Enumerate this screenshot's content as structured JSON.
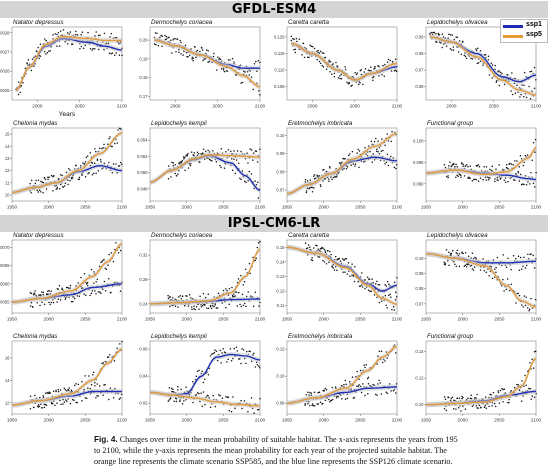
{
  "headers": {
    "top": "GFDL-ESM4",
    "bottom": "IPSL-CM6-LR"
  },
  "legend": [
    {
      "name": "ssp1",
      "color": "#1f2fb5"
    },
    {
      "name": "ssp5",
      "color": "#e39a3a"
    }
  ],
  "colors": {
    "ssp126": "#1f2fb5",
    "ssp585": "#e39a3a",
    "band": "#c9c9c9",
    "points": "#111111",
    "header_bg": "#d4d4d4"
  },
  "caption": {
    "label": "Fig. 4.",
    "lines": [
      "Changes over time in the mean probability of suitable habitat. The x-axis represents the years from 195",
      "to 2100, while the y-axis represents the mean probability for each year of the projected suitable habitat. The",
      "orange line represents the climate scenario SSP585, and the blue line represents the SSP126 climate scenario."
    ]
  },
  "chart_data": [
    {
      "type": "scatter",
      "group": "GFDL-ESM4",
      "title": "Natator depressus",
      "xlabel": "Years",
      "ylabel": "",
      "x_ticks": [
        "2000",
        "2050",
        "2100"
      ],
      "y_ticks": [
        "0.0025",
        "0.0026",
        "0.0027",
        "0.0028"
      ],
      "xlim": [
        1970,
        2100
      ],
      "ylim": [
        0.00245,
        0.00283
      ],
      "series": [
        {
          "name": "SSP126",
          "x": [
            1975,
            1990,
            2010,
            2030,
            2060,
            2080,
            2100
          ],
          "y": [
            0.0025,
            0.00262,
            0.00273,
            0.00277,
            0.00275,
            0.00273,
            0.00271
          ]
        },
        {
          "name": "SSP585",
          "x": [
            1975,
            1990,
            2010,
            2030,
            2060,
            2080,
            2100
          ],
          "y": [
            0.0025,
            0.00262,
            0.00274,
            0.00278,
            0.00277,
            0.00276,
            0.00276
          ]
        }
      ]
    },
    {
      "type": "scatter",
      "group": "GFDL-ESM4",
      "title": "Dermochelys coriacea",
      "xlabel": "",
      "ylabel": "",
      "x_ticks": [
        "2000",
        "2050",
        "2100"
      ],
      "y_ticks": [
        "0.17",
        "0.18",
        "0.19",
        "0.20"
      ],
      "xlim": [
        1970,
        2100
      ],
      "ylim": [
        0.168,
        0.207
      ],
      "series": [
        {
          "name": "SSP126",
          "x": [
            1975,
            2000,
            2030,
            2060,
            2080,
            2100
          ],
          "y": [
            0.2,
            0.197,
            0.192,
            0.187,
            0.185,
            0.185
          ]
        },
        {
          "name": "SSP585",
          "x": [
            1975,
            2000,
            2030,
            2060,
            2080,
            2100
          ],
          "y": [
            0.2,
            0.197,
            0.192,
            0.186,
            0.181,
            0.175
          ]
        }
      ]
    },
    {
      "type": "scatter",
      "group": "GFDL-ESM4",
      "title": "Caretta caretta",
      "xlabel": "",
      "ylabel": "",
      "x_ticks": [
        "2000",
        "2050",
        "2100"
      ],
      "y_ticks": [
        "0.105",
        "0.110",
        "0.115",
        "0.120"
      ],
      "xlim": [
        1970,
        2100
      ],
      "ylim": [
        0.101,
        0.123
      ],
      "series": [
        {
          "name": "SSP126",
          "x": [
            1975,
            2000,
            2030,
            2050,
            2070,
            2100
          ],
          "y": [
            0.118,
            0.115,
            0.11,
            0.107,
            0.109,
            0.111
          ]
        },
        {
          "name": "SSP585",
          "x": [
            1975,
            2000,
            2030,
            2050,
            2070,
            2100
          ],
          "y": [
            0.118,
            0.115,
            0.11,
            0.107,
            0.109,
            0.112
          ]
        }
      ]
    },
    {
      "type": "scatter",
      "group": "GFDL-ESM4",
      "title": "Lepidochelys olivacea",
      "xlabel": "",
      "ylabel": "",
      "x_ticks": [
        "2000",
        "2050",
        "2100"
      ],
      "y_ticks": [
        "0.06",
        "0.07",
        "0.08",
        "0.09"
      ],
      "xlim": [
        1970,
        2100
      ],
      "ylim": [
        0.052,
        0.096
      ],
      "series": [
        {
          "name": "SSP126",
          "x": [
            1975,
            2000,
            2030,
            2060,
            2080,
            2100
          ],
          "y": [
            0.09,
            0.087,
            0.08,
            0.066,
            0.063,
            0.067
          ]
        },
        {
          "name": "SSP585",
          "x": [
            1975,
            2000,
            2030,
            2060,
            2080,
            2100
          ],
          "y": [
            0.09,
            0.087,
            0.078,
            0.064,
            0.058,
            0.055
          ]
        }
      ]
    },
    {
      "type": "scatter",
      "group": "GFDL-ESM4",
      "title": "Chelonia mydas",
      "xlabel": "",
      "ylabel": "",
      "x_ticks": [
        "1950",
        "2000",
        "2050",
        "2100"
      ],
      "y_ticks": [
        "10",
        "11",
        "12",
        "13",
        "14",
        "15"
      ],
      "xlim": [
        1950,
        2100
      ],
      "ylim": [
        9.5,
        15.5
      ],
      "series": [
        {
          "name": "SSP126",
          "x": [
            1950,
            1980,
            2010,
            2040,
            2070,
            2100
          ],
          "y": [
            10.2,
            10.6,
            11.0,
            11.9,
            12.4,
            12.0
          ]
        },
        {
          "name": "SSP585",
          "x": [
            1950,
            1980,
            2010,
            2040,
            2070,
            2100
          ],
          "y": [
            10.2,
            10.6,
            11.0,
            12.0,
            13.4,
            15.1
          ]
        }
      ]
    },
    {
      "type": "scatter",
      "group": "GFDL-ESM4",
      "title": "Lepidochelys kempii",
      "xlabel": "",
      "ylabel": "",
      "x_ticks": [
        "1950",
        "2000",
        "2050",
        "2100"
      ],
      "y_ticks": [
        "0.048",
        "0.050",
        "0.052",
        "0.054"
      ],
      "xlim": [
        1950,
        2100
      ],
      "ylim": [
        0.0465,
        0.0555
      ],
      "series": [
        {
          "name": "SSP126",
          "x": [
            1950,
            1980,
            2010,
            2030,
            2060,
            2080,
            2100
          ],
          "y": [
            0.0488,
            0.0503,
            0.0516,
            0.0521,
            0.0512,
            0.0496,
            0.0478
          ]
        },
        {
          "name": "SSP585",
          "x": [
            1950,
            1980,
            2010,
            2030,
            2060,
            2080,
            2100
          ],
          "y": [
            0.0488,
            0.0503,
            0.0517,
            0.0522,
            0.0521,
            0.052,
            0.0519
          ]
        }
      ]
    },
    {
      "type": "scatter",
      "group": "GFDL-ESM4",
      "title": "Eretmochelys imbricata",
      "xlabel": "",
      "ylabel": "",
      "x_ticks": [
        "1950",
        "2000",
        "2050",
        "2100"
      ],
      "y_ticks": [
        "0.07",
        "0.08",
        "0.09",
        "0.10"
      ],
      "xlim": [
        1950,
        2100
      ],
      "ylim": [
        0.064,
        0.104
      ],
      "series": [
        {
          "name": "SSP126",
          "x": [
            1950,
            1980,
            2010,
            2040,
            2070,
            2100
          ],
          "y": [
            0.068,
            0.073,
            0.079,
            0.086,
            0.088,
            0.086
          ]
        },
        {
          "name": "SSP585",
          "x": [
            1950,
            1980,
            2010,
            2040,
            2070,
            2100
          ],
          "y": [
            0.068,
            0.073,
            0.079,
            0.087,
            0.094,
            0.101
          ]
        }
      ]
    },
    {
      "type": "scatter",
      "group": "GFDL-ESM4",
      "title": "Functional group",
      "xlabel": "",
      "ylabel": "",
      "x_ticks": [
        "1950",
        "2000",
        "2050",
        "2100"
      ],
      "y_ticks": [
        "0.090",
        "0.095",
        "0.100"
      ],
      "xlim": [
        1950,
        2100
      ],
      "ylim": [
        0.086,
        0.103
      ],
      "series": [
        {
          "name": "SSP126",
          "x": [
            1950,
            1990,
            2030,
            2060,
            2090,
            2100
          ],
          "y": [
            0.0925,
            0.0932,
            0.0925,
            0.092,
            0.0912,
            0.091
          ]
        },
        {
          "name": "SSP585",
          "x": [
            1950,
            1990,
            2030,
            2060,
            2090,
            2100
          ],
          "y": [
            0.0925,
            0.0932,
            0.0922,
            0.0928,
            0.096,
            0.0985
          ]
        }
      ]
    },
    {
      "type": "scatter",
      "group": "IPSL-CM6-LR",
      "title": "Natator depressus",
      "xlabel": "",
      "ylabel": "",
      "x_ticks": [
        "1950",
        "2000",
        "2050",
        "2100"
      ],
      "y_ticks": [
        "0.0055",
        "0.0060",
        "0.0065",
        "0.0070"
      ],
      "xlim": [
        1950,
        2100
      ],
      "ylim": [
        0.0052,
        0.0072
      ],
      "series": [
        {
          "name": "SSP126",
          "x": [
            1950,
            1990,
            2030,
            2060,
            2100
          ],
          "y": [
            0.0055,
            0.0056,
            0.0057,
            0.0059,
            0.006
          ]
        },
        {
          "name": "SSP585",
          "x": [
            1950,
            1990,
            2030,
            2060,
            2080,
            2100
          ],
          "y": [
            0.0055,
            0.0056,
            0.0058,
            0.0062,
            0.0066,
            0.0071
          ]
        }
      ]
    },
    {
      "type": "scatter",
      "group": "IPSL-CM6-LR",
      "title": "Dermochelys coriacea",
      "xlabel": "",
      "ylabel": "",
      "x_ticks": [
        "1950",
        "2000",
        "2050",
        "2100"
      ],
      "y_ticks": [
        "0.24",
        "0.28",
        "0.32"
      ],
      "xlim": [
        1950,
        2100
      ],
      "ylim": [
        0.225,
        0.345
      ],
      "series": [
        {
          "name": "SSP126",
          "x": [
            1950,
            1990,
            2030,
            2060,
            2100
          ],
          "y": [
            0.24,
            0.242,
            0.244,
            0.247,
            0.248
          ]
        },
        {
          "name": "SSP585",
          "x": [
            1950,
            1990,
            2030,
            2060,
            2080,
            2100
          ],
          "y": [
            0.24,
            0.242,
            0.245,
            0.258,
            0.285,
            0.33
          ]
        }
      ]
    },
    {
      "type": "scatter",
      "group": "IPSL-CM6-LR",
      "title": "Caretta caretta",
      "xlabel": "",
      "ylabel": "",
      "x_ticks": [
        "1950",
        "2000",
        "2050",
        "2100"
      ],
      "y_ticks": [
        "0.11",
        "0.12",
        "0.13",
        "0.14",
        "0.15"
      ],
      "xlim": [
        1950,
        2100
      ],
      "ylim": [
        0.105,
        0.155
      ],
      "series": [
        {
          "name": "SSP126",
          "x": [
            1950,
            1990,
            2030,
            2060,
            2080,
            2100
          ],
          "y": [
            0.15,
            0.146,
            0.137,
            0.125,
            0.12,
            0.124
          ]
        },
        {
          "name": "SSP585",
          "x": [
            1950,
            1990,
            2030,
            2060,
            2080,
            2100
          ],
          "y": [
            0.15,
            0.146,
            0.136,
            0.124,
            0.115,
            0.111
          ]
        }
      ]
    },
    {
      "type": "scatter",
      "group": "IPSL-CM6-LR",
      "title": "Lepidochelys olivacea",
      "xlabel": "",
      "ylabel": "",
      "x_ticks": [
        "1950",
        "2000",
        "2050",
        "2100"
      ],
      "y_ticks": [
        "0.07",
        "0.08",
        "0.09",
        "0.10"
      ],
      "xlim": [
        1950,
        2100
      ],
      "ylim": [
        0.064,
        0.112
      ],
      "series": [
        {
          "name": "SSP126",
          "x": [
            1950,
            1990,
            2030,
            2060,
            2100
          ],
          "y": [
            0.103,
            0.1,
            0.097,
            0.097,
            0.098
          ]
        },
        {
          "name": "SSP585",
          "x": [
            1950,
            1990,
            2030,
            2060,
            2080,
            2100
          ],
          "y": [
            0.103,
            0.1,
            0.095,
            0.082,
            0.072,
            0.068
          ]
        }
      ]
    },
    {
      "type": "scatter",
      "group": "IPSL-CM6-LR",
      "title": "Chelonia mydas",
      "xlabel": "",
      "ylabel": "",
      "x_ticks": [
        "1950",
        "2000",
        "2050",
        "2100"
      ],
      "y_ticks": [
        "12",
        "14",
        "16"
      ],
      "xlim": [
        1950,
        2100
      ],
      "ylim": [
        11.0,
        17.5
      ],
      "series": [
        {
          "name": "SSP126",
          "x": [
            1950,
            1990,
            2030,
            2060,
            2100
          ],
          "y": [
            11.8,
            12.2,
            12.6,
            13.0,
            13.0
          ]
        },
        {
          "name": "SSP585",
          "x": [
            1950,
            1990,
            2030,
            2060,
            2080,
            2100
          ],
          "y": [
            11.8,
            12.2,
            12.8,
            14.0,
            15.5,
            16.8
          ]
        }
      ]
    },
    {
      "type": "scatter",
      "group": "IPSL-CM6-LR",
      "title": "Lepidochelys kempii",
      "xlabel": "",
      "ylabel": "",
      "x_ticks": [
        "1950",
        "2000",
        "2050",
        "2100"
      ],
      "y_ticks": [
        "0.02",
        "0.04",
        "0.06"
      ],
      "xlim": [
        1950,
        2100
      ],
      "ylim": [
        0.012,
        0.066
      ],
      "series": [
        {
          "name": "SSP126",
          "x": [
            1950,
            1980,
            2000,
            2020,
            2040,
            2060,
            2080,
            2100
          ],
          "y": [
            0.028,
            0.026,
            0.027,
            0.04,
            0.054,
            0.056,
            0.055,
            0.052
          ]
        },
        {
          "name": "SSP585",
          "x": [
            1950,
            1980,
            2010,
            2040,
            2070,
            2100
          ],
          "y": [
            0.028,
            0.026,
            0.024,
            0.021,
            0.019,
            0.018
          ]
        }
      ]
    },
    {
      "type": "scatter",
      "group": "IPSL-CM6-LR",
      "title": "Eretmochelys imbricata",
      "xlabel": "",
      "ylabel": "",
      "x_ticks": [
        "1950",
        "2000",
        "2050",
        "2100"
      ],
      "y_ticks": [
        "0.08",
        "0.10",
        "0.12"
      ],
      "xlim": [
        1950,
        2100
      ],
      "ylim": [
        0.072,
        0.126
      ],
      "series": [
        {
          "name": "SSP126",
          "x": [
            1950,
            1990,
            2030,
            2060,
            2100
          ],
          "y": [
            0.08,
            0.084,
            0.088,
            0.091,
            0.092
          ]
        },
        {
          "name": "SSP585",
          "x": [
            1950,
            1990,
            2030,
            2060,
            2080,
            2100
          ],
          "y": [
            0.08,
            0.084,
            0.091,
            0.104,
            0.114,
            0.122
          ]
        }
      ]
    },
    {
      "type": "scatter",
      "group": "IPSL-CM6-LR",
      "title": "Functional group",
      "xlabel": "",
      "ylabel": "",
      "x_ticks": [
        "1950",
        "2000",
        "2050",
        "2100"
      ],
      "y_ticks": [
        "0.10",
        "0.12",
        "0.14"
      ],
      "xlim": [
        1950,
        2100
      ],
      "ylim": [
        0.093,
        0.148
      ],
      "series": [
        {
          "name": "SSP126",
          "x": [
            1950,
            1990,
            2030,
            2060,
            2100
          ],
          "y": [
            0.1,
            0.101,
            0.103,
            0.107,
            0.11
          ]
        },
        {
          "name": "SSP585",
          "x": [
            1950,
            1990,
            2030,
            2060,
            2080,
            2100
          ],
          "y": [
            0.1,
            0.101,
            0.102,
            0.106,
            0.114,
            0.135
          ]
        }
      ]
    }
  ]
}
